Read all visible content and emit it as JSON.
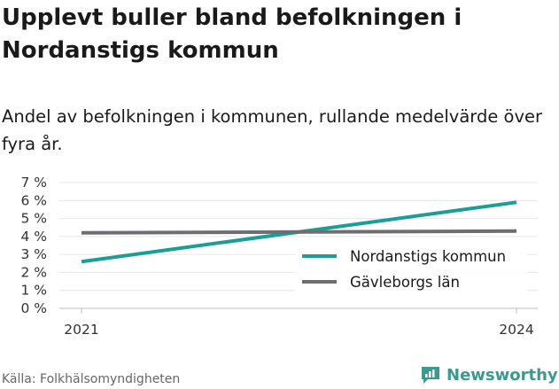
{
  "title": "Upplevt buller bland befolkningen i Nordanstigs kommun",
  "subtitle": "Andel av befolkningen i kommunen, rullande medelvärde över fyra år.",
  "source": "Källa: Folkhälsomyndigheten",
  "brand": "Newsworthy",
  "colors": {
    "accent": "#1a9e96",
    "secondary": "#6d6d72",
    "brand": "#3a9a90"
  },
  "chart_data": {
    "type": "line",
    "x": [
      2021,
      2024
    ],
    "x_tick_labels": [
      "2021",
      "2024"
    ],
    "y_tick_labels": [
      "0 %",
      "1 %",
      "2 %",
      "3 %",
      "4 %",
      "5 %",
      "6 %",
      "7 %"
    ],
    "ylim": [
      0,
      7
    ],
    "grid": true,
    "legend_placement": "bottom-right",
    "series": [
      {
        "name": "Nordanstigs kommun",
        "color": "#1a9e96",
        "values": [
          2.6,
          5.9
        ]
      },
      {
        "name": "Gävleborgs län",
        "color": "#6d6d72",
        "values": [
          4.2,
          4.3
        ]
      }
    ]
  }
}
